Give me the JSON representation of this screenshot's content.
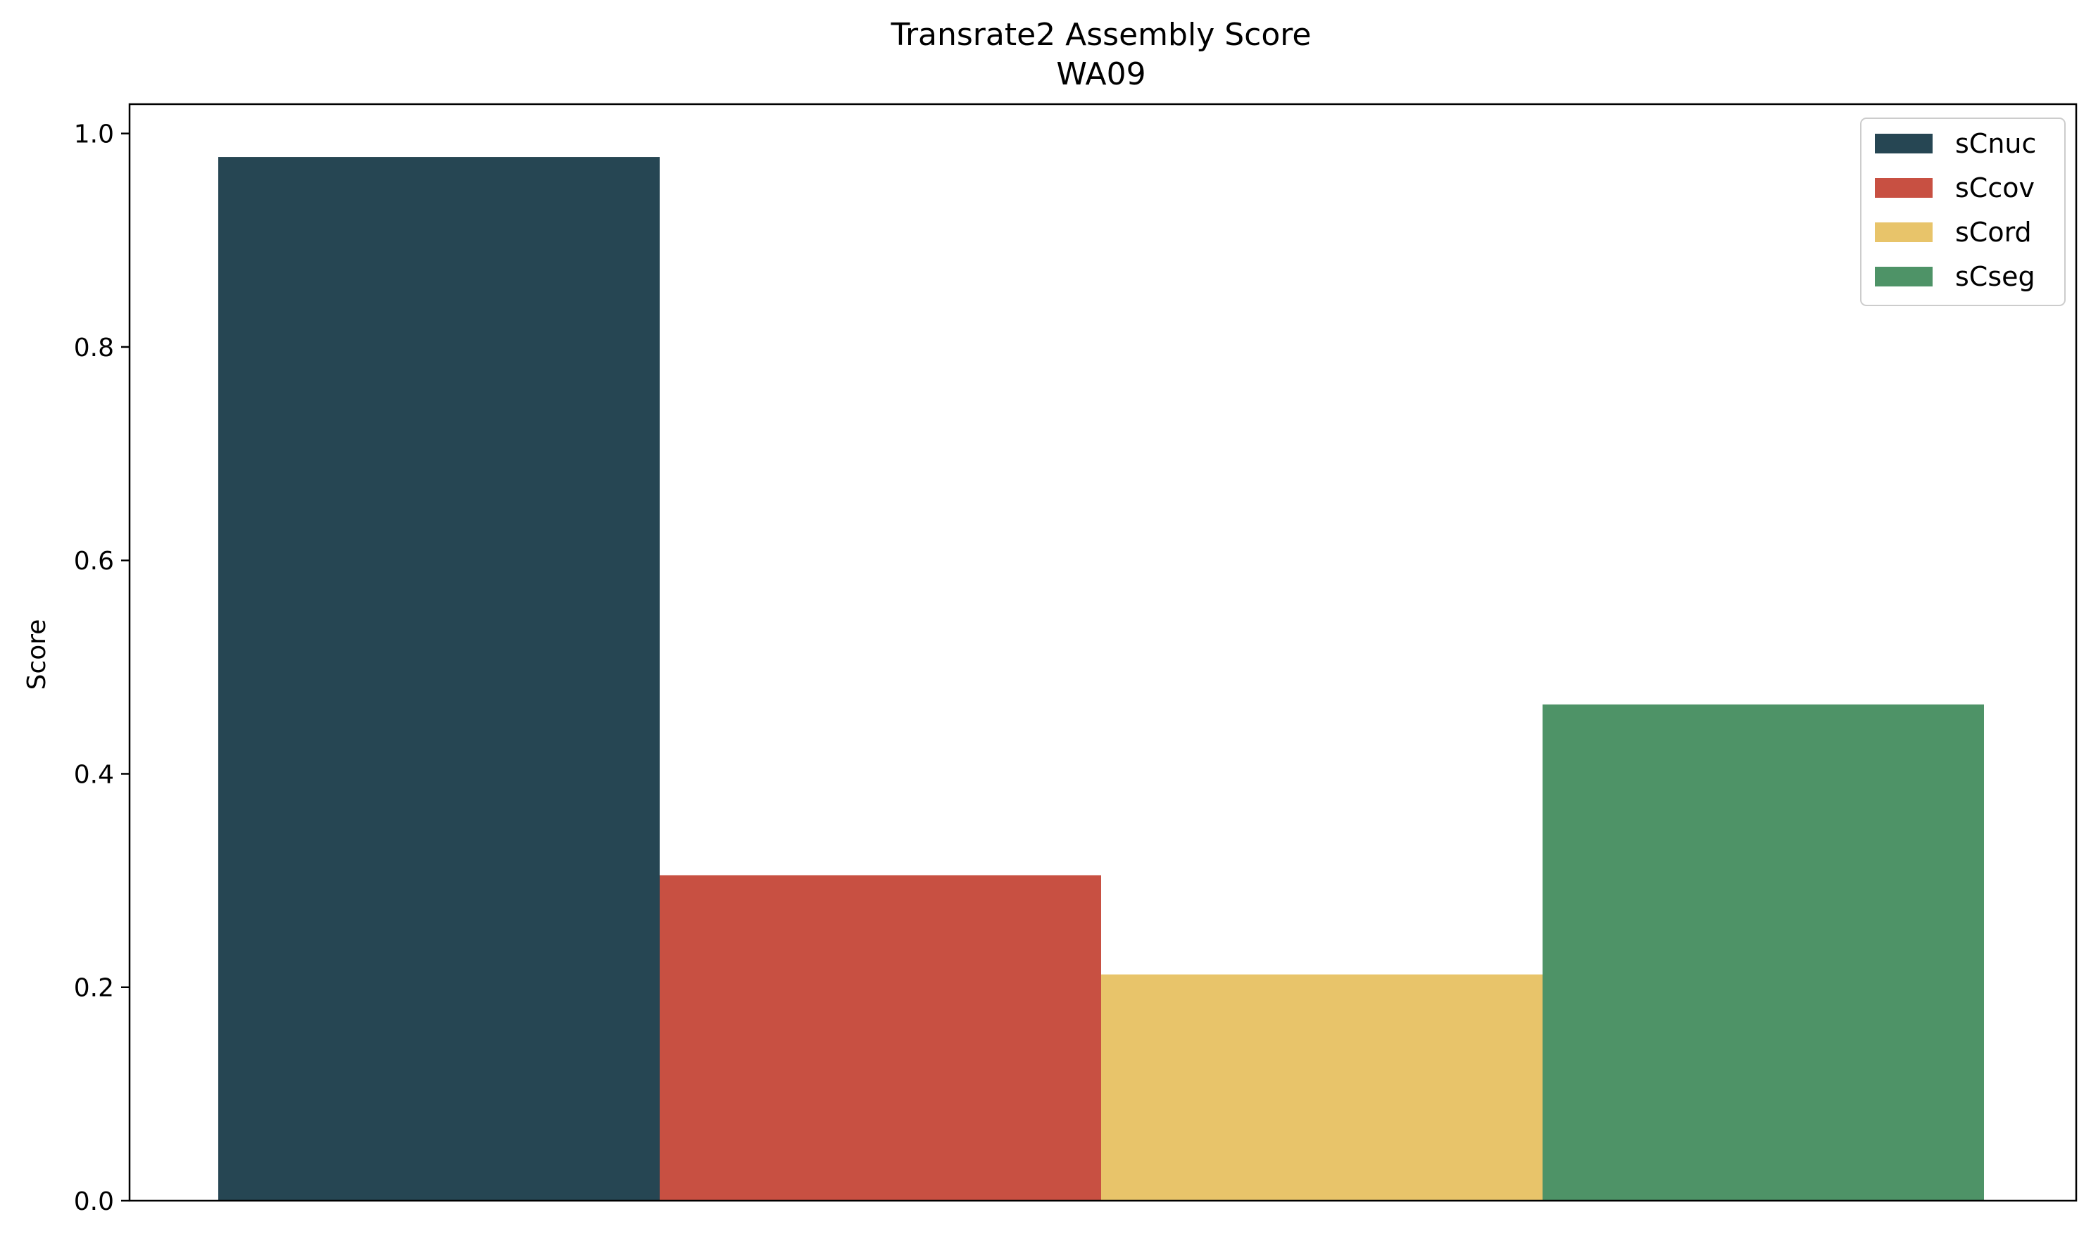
{
  "chart_data": {
    "type": "bar",
    "title": "Transrate2 Assembly Score",
    "subtitle": "WA09",
    "xlabel": "",
    "ylabel": "Score",
    "ylim": [
      0,
      1.0275
    ],
    "yticks": [
      "0.0",
      "0.2",
      "0.4",
      "0.6",
      "0.8",
      "1.0"
    ],
    "grid": false,
    "legend_position": "top-right",
    "series": [
      {
        "name": "sCnuc",
        "value": 0.978,
        "color": "#264653"
      },
      {
        "name": "sCcov",
        "value": 0.305,
        "color": "#c85042"
      },
      {
        "name": "sCord",
        "value": 0.212,
        "color": "#e8c46a"
      },
      {
        "name": "sCseg",
        "value": 0.465,
        "color": "#4e9367"
      }
    ]
  }
}
